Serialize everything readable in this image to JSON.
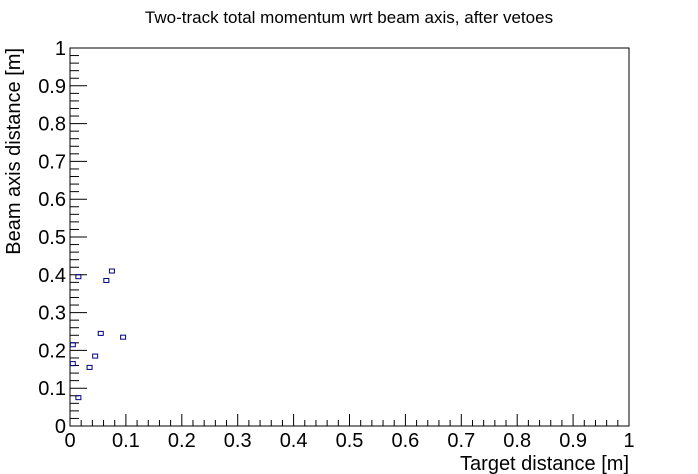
{
  "chart_data": {
    "type": "scatter",
    "title": "Two-track total momentum wrt beam axis, after vetoes",
    "xlabel": "Target distance [m]",
    "ylabel": "Beam axis distance [m]",
    "xlim": [
      0,
      1
    ],
    "ylim": [
      0,
      1
    ],
    "x_ticks": [
      "0",
      "0.1",
      "0.2",
      "0.3",
      "0.4",
      "0.5",
      "0.6",
      "0.7",
      "0.8",
      "0.9",
      "1"
    ],
    "y_ticks": [
      "0",
      "0.1",
      "0.2",
      "0.3",
      "0.4",
      "0.5",
      "0.6",
      "0.7",
      "0.8",
      "0.9",
      "1"
    ],
    "grid": false,
    "marker_color": "#000080",
    "points": [
      {
        "x": 0.075,
        "y": 0.41
      },
      {
        "x": 0.065,
        "y": 0.385
      },
      {
        "x": 0.015,
        "y": 0.395
      },
      {
        "x": 0.055,
        "y": 0.245
      },
      {
        "x": 0.095,
        "y": 0.235
      },
      {
        "x": 0.045,
        "y": 0.185
      },
      {
        "x": 0.035,
        "y": 0.155
      },
      {
        "x": 0.015,
        "y": 0.075
      },
      {
        "x": 0.005,
        "y": 0.165
      },
      {
        "x": 0.005,
        "y": 0.215
      }
    ]
  }
}
